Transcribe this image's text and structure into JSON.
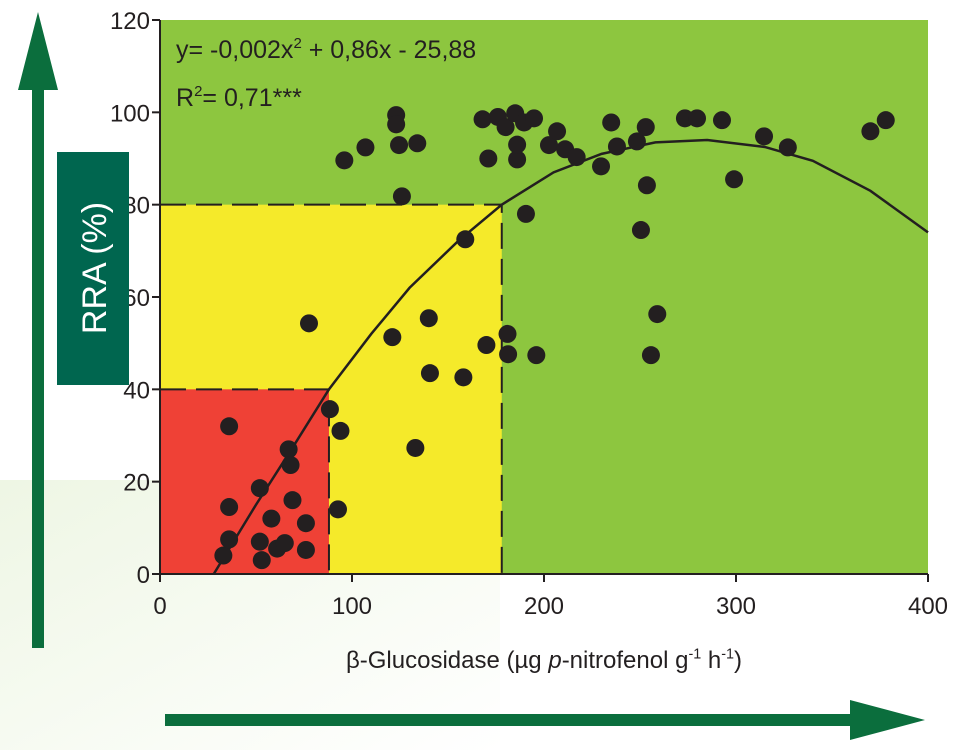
{
  "chart_data": {
    "type": "scatter",
    "y_label": "RRA (%)",
    "x_label": [
      {
        "text": "β-Glucosidase (µg "
      },
      {
        "text": "p",
        "italic": true
      },
      {
        "text": "-nitrofenol g"
      },
      {
        "text": "-1",
        "sup": true
      },
      {
        "text": " h"
      },
      {
        "text": "-1",
        "sup": true
      },
      {
        "text": ")"
      }
    ],
    "equation": [
      {
        "text": "y= -0,002x"
      },
      {
        "text": "2",
        "sup": true
      },
      {
        "text": " + 0,86x - 25,88"
      }
    ],
    "r_squared": [
      {
        "text": "R"
      },
      {
        "text": "2",
        "sup": true
      },
      {
        "text": "= 0,71***"
      }
    ],
    "xlim": [
      0,
      400
    ],
    "ylim": [
      0,
      120
    ],
    "xticks": [
      0,
      100,
      200,
      300,
      400
    ],
    "yticks": [
      0,
      20,
      40,
      60,
      80,
      100,
      120
    ],
    "background": "#8dc63f",
    "zones": [
      {
        "x": [
          0,
          178
        ],
        "y": [
          0,
          80
        ],
        "color": "#f5ea2a"
      },
      {
        "x": [
          0,
          88
        ],
        "y": [
          0,
          40
        ],
        "color": "#ef4136"
      }
    ],
    "series": [
      {
        "color": "#231f20",
        "x": [
          33,
          36,
          36,
          36,
          52,
          52,
          53,
          58,
          61,
          65,
          67,
          68,
          69,
          76,
          76,
          77.6,
          88.5,
          92.7,
          94,
          96,
          107,
          121,
          123,
          123,
          124.5,
          126,
          134,
          133,
          140,
          140.6,
          158,
          159,
          168,
          170,
          171,
          176,
          180,
          181,
          181.3,
          185,
          186,
          186,
          189.6,
          190.6,
          194.8,
          196,
          202.6,
          206.8,
          211,
          217,
          229.7,
          235,
          238,
          248.4,
          250.5,
          253,
          253.6,
          255.7,
          259,
          273.4,
          279.7,
          292.7,
          299,
          314.6,
          327,
          370,
          378
        ],
        "values": [
          4,
          32,
          14.5,
          7.5,
          18.6,
          7,
          3,
          12,
          5.5,
          6.7,
          27,
          23.6,
          16,
          11,
          5.2,
          54.3,
          35.7,
          14,
          31,
          89.6,
          92.4,
          51.3,
          99.4,
          97.4,
          92.9,
          81.8,
          93.3,
          27.3,
          55.4,
          43.5,
          42.6,
          72.5,
          98.5,
          49.6,
          90,
          99,
          96.8,
          52,
          47.6,
          99.8,
          89.8,
          93,
          97.8,
          78,
          98.7,
          47.4,
          92.9,
          95.9,
          92,
          90.3,
          88.3,
          97.8,
          92.6,
          93.7,
          74.5,
          96.8,
          84.2,
          47.4,
          56.3,
          98.7,
          98.7,
          98.3,
          85.5,
          94.8,
          92.4,
          95.9,
          98.3
        ]
      }
    ],
    "fit": {
      "color": "#231f20",
      "x": [
        28,
        50,
        70,
        88,
        110,
        130,
        155,
        178,
        205,
        230,
        258,
        285,
        315,
        340,
        370,
        400
      ],
      "values": [
        0,
        15,
        28,
        40,
        52,
        62,
        72,
        80,
        87,
        91,
        93.5,
        94,
        92.5,
        89.5,
        83,
        74
      ]
    }
  }
}
